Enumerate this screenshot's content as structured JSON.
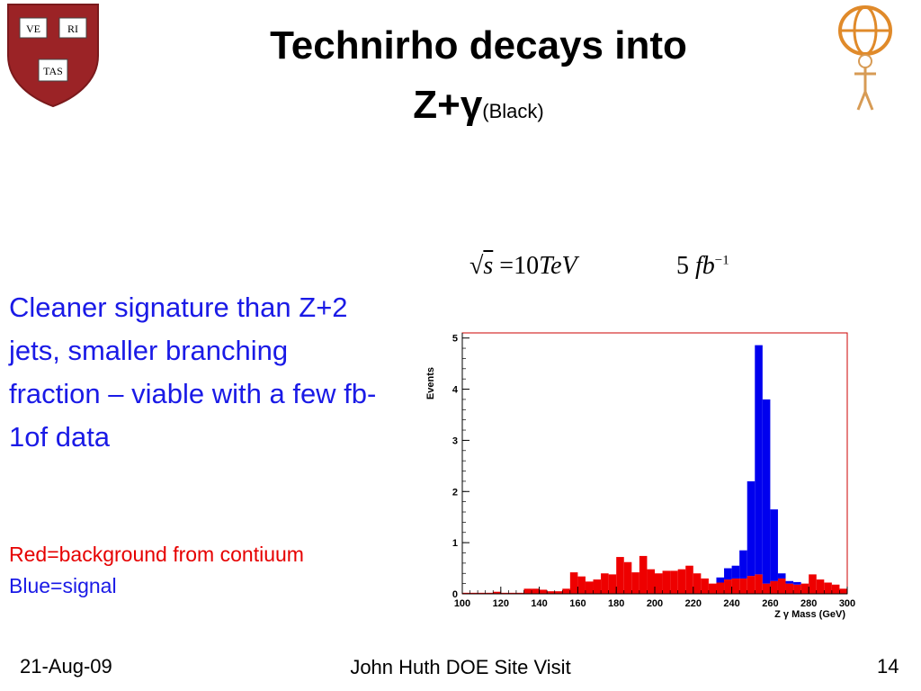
{
  "slide": {
    "title_line1": "Technirho decays into",
    "title_main": "Z+γ",
    "title_sub": "(Black)",
    "body_text": "Cleaner signature than Z+2 jets, smaller branching fraction – viable with a few fb-1of data",
    "legend_red": "Red=background from contiuum",
    "legend_blue": "Blue=signal",
    "formula_energy": {
      "sqrt_var": "s",
      "rhs": "=10",
      "unit": "TeV"
    },
    "formula_lumi": {
      "coef": "5",
      "unit": "fb",
      "exp": "−1"
    },
    "logo_left": {
      "text_top_left": "VE",
      "text_top_right": "RI",
      "text_bottom": "TAS",
      "color": "#9b2326"
    },
    "logo_right": {
      "icon": "atlas-figure-icon"
    },
    "footer": {
      "date": "21-Aug-09",
      "center": "John Huth DOE Site Visit",
      "page": "14"
    }
  },
  "chart_data": {
    "type": "bar",
    "xlabel": "Z γ Mass (GeV)",
    "ylabel": "Events",
    "xlim": [
      100,
      300
    ],
    "ylim": [
      0,
      5.1
    ],
    "x_ticks": [
      100,
      120,
      140,
      160,
      180,
      200,
      220,
      240,
      260,
      280,
      300
    ],
    "y_ticks": [
      0,
      1,
      2,
      3,
      4,
      5
    ],
    "bin_width": 4,
    "bin_edges_start": [
      100,
      104,
      108,
      112,
      116,
      120,
      124,
      128,
      132,
      136,
      140,
      144,
      148,
      152,
      156,
      160,
      164,
      168,
      172,
      176,
      180,
      184,
      188,
      192,
      196,
      200,
      204,
      208,
      212,
      216,
      220,
      224,
      228,
      232,
      236,
      240,
      244,
      248,
      252,
      256,
      260,
      264,
      268,
      272,
      276,
      280,
      284,
      288,
      292,
      296
    ],
    "series": [
      {
        "name": "Red=background from contiuum",
        "color": "#ee0000",
        "values": [
          0.02,
          0.02,
          0.02,
          0.02,
          0.04,
          0.02,
          0.02,
          0.02,
          0.1,
          0.1,
          0.08,
          0.05,
          0.05,
          0.1,
          0.42,
          0.34,
          0.24,
          0.28,
          0.4,
          0.38,
          0.72,
          0.62,
          0.42,
          0.74,
          0.48,
          0.4,
          0.45,
          0.45,
          0.48,
          0.55,
          0.4,
          0.3,
          0.2,
          0.22,
          0.28,
          0.3,
          0.3,
          0.35,
          0.38,
          0.2,
          0.25,
          0.3,
          0.2,
          0.18,
          0.2,
          0.38,
          0.28,
          0.22,
          0.18,
          0.1
        ]
      },
      {
        "name": "Blue=signal",
        "color": "#0000ee",
        "values": [
          0.0,
          0.0,
          0.0,
          0.0,
          0.0,
          0.0,
          0.0,
          0.0,
          0.0,
          0.0,
          0.0,
          0.0,
          0.0,
          0.0,
          0.0,
          0.0,
          0.0,
          0.0,
          0.0,
          0.0,
          0.0,
          0.0,
          0.0,
          0.0,
          0.0,
          0.0,
          0.0,
          0.0,
          0.0,
          0.0,
          0.0,
          0.0,
          0.0,
          0.1,
          0.22,
          0.25,
          0.55,
          1.85,
          4.48,
          3.6,
          1.4,
          0.1,
          0.05,
          0.05,
          0.0,
          0.0,
          0.0,
          0.0,
          0.0,
          0.0
        ]
      }
    ],
    "stacked": true,
    "grid": false
  }
}
